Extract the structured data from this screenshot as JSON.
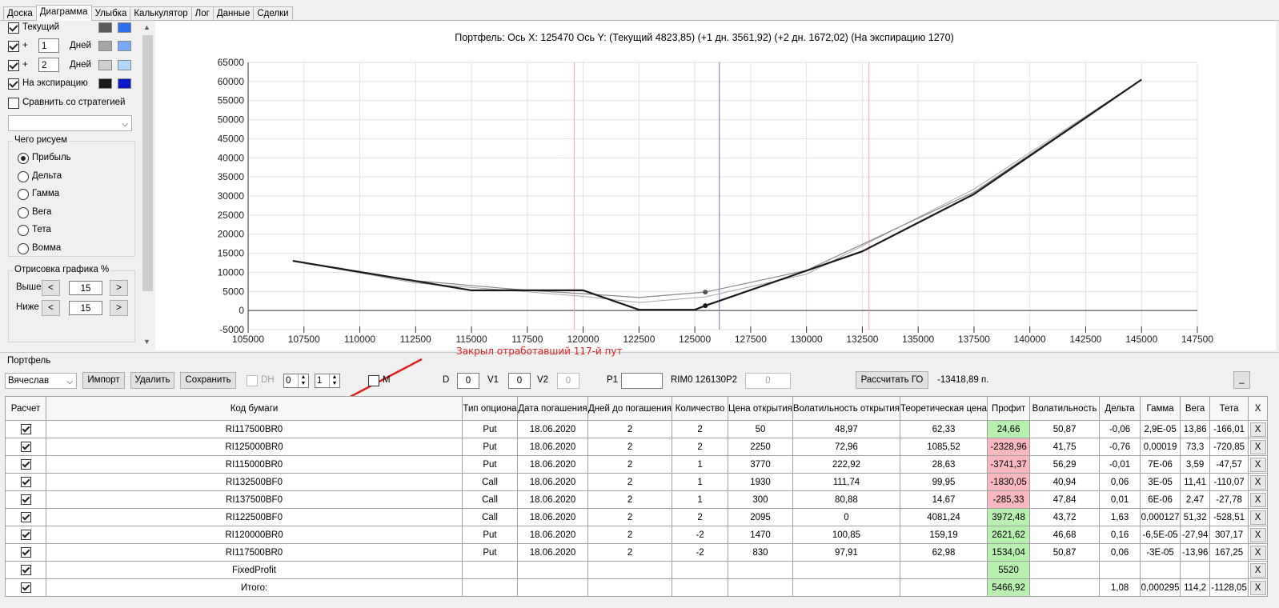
{
  "tabs": [
    {
      "label": "Доска",
      "active": false
    },
    {
      "label": "Диаграмма",
      "active": true
    },
    {
      "label": "Улыбка",
      "active": false
    },
    {
      "label": "Калькулятор",
      "active": false
    },
    {
      "label": "Лог",
      "active": false
    },
    {
      "label": "Данные",
      "active": false
    },
    {
      "label": "Сделки",
      "active": false
    }
  ],
  "left": {
    "current_label": "Текущий",
    "plus": "+",
    "days_label": "Дней",
    "days1": "1",
    "days2": "2",
    "expiration_label": "На экспирацию",
    "compare_label": "Сравнить со стратегией",
    "what_group": "Чего рисуем",
    "radios": [
      "Прибыль",
      "Дельта",
      "Гамма",
      "Вега",
      "Тета",
      "Вомма"
    ],
    "draw_group": "Отрисовка графика %",
    "above_label": "Выше",
    "below_label": "Ниже",
    "above_value": "15",
    "below_value": "15",
    "btn_left": "<",
    "btn_right": ">",
    "colors": {
      "current": [
        "#595959",
        "#2d6ff0"
      ],
      "day1": [
        "#a6a6a6",
        "#79a8f7"
      ],
      "day2": [
        "#cfcfcf",
        "#b0d8fa"
      ],
      "expiry": [
        "#1a1a1a",
        "#0b1ac9"
      ]
    }
  },
  "chart": {
    "title": "Портфель: Ось X:  125470 Ось Y:   (Текущий 4823,85)  (+1 дн. 3561,92)  (+2 дн. 1672,02)  (На экспирацию 1270)"
  },
  "chart_data": {
    "type": "line",
    "xlim": [
      105000,
      147500
    ],
    "ylim": [
      -5000,
      65000
    ],
    "x_ticks": [
      105000,
      107500,
      110000,
      112500,
      115000,
      117500,
      120000,
      122500,
      125000,
      127500,
      130000,
      132500,
      135000,
      137500,
      140000,
      142500,
      145000,
      147500
    ],
    "y_ticks": [
      -5000,
      0,
      5000,
      10000,
      15000,
      20000,
      25000,
      30000,
      35000,
      40000,
      45000,
      50000,
      55000,
      60000,
      65000
    ],
    "grid": true,
    "vertical_lines": [
      {
        "x": 119600,
        "color": "#f7a0a0"
      },
      {
        "x": 126100,
        "color": "#6f6fbf"
      },
      {
        "x": 132800,
        "color": "#f7a0a0"
      }
    ],
    "series": [
      {
        "color": "#1a1a1a",
        "width": 2.2,
        "x": [
          107000,
          115000,
          120000,
          122500,
          125000,
          125470,
          132500,
          137500,
          145000
        ],
        "y": [
          13000,
          5300,
          5300,
          200,
          200,
          1270,
          15500,
          30500,
          60500
        ]
      },
      {
        "color": "#888888",
        "width": 1.2,
        "x": [
          107000,
          112500,
          117500,
          120000,
          122500,
          125470,
          130000,
          137500,
          145000
        ],
        "y": [
          13000,
          7800,
          5300,
          4400,
          3400,
          4823.85,
          10500,
          31000,
          60500
        ]
      },
      {
        "color": "#a6a6a6",
        "width": 1.0,
        "x": [
          107000,
          112500,
          117500,
          120000,
          122500,
          125470,
          130000,
          137500,
          145000
        ],
        "y": [
          13000,
          7200,
          4900,
          3700,
          2100,
          3561.92,
          9500,
          31800,
          60500
        ]
      }
    ],
    "points": [
      {
        "x": 125470,
        "y": 4823.85,
        "color": "#555555"
      },
      {
        "x": 125470,
        "y": 1270,
        "color": "#1a1a1a"
      }
    ]
  },
  "portfolio": {
    "group": "Портфель",
    "annotation": "Закрыл отработавший 117-й пут",
    "user": "Вячеслав",
    "import": "Импорт",
    "delete": "Удалить",
    "save": "Сохранить",
    "dh": "DH",
    "spin1": "0",
    "spin2": "1",
    "m": "M",
    "d_label": "D",
    "d_value": "0",
    "v1_label": "V1",
    "v1_value": "0",
    "v2_label": "V2",
    "v2_value": "0",
    "p1_label": "P1",
    "p1_value": "",
    "rim_text": "RIM0 126130",
    "p2_label": "P2",
    "p2_value": "0",
    "calc_go": "Рассчитать ГО",
    "go_value": "-13418,89 п.",
    "min_btn": "_"
  },
  "table": {
    "headers": [
      "Расчет",
      "Код бумаги",
      "Тип опциона",
      "Дата погашения",
      "Дней до погашения",
      "Количество",
      "Цена открытия",
      "Волатильность открытия",
      "Теоретическая цена",
      "Профит",
      "Волатильность",
      "Дельта",
      "Гамма",
      "Вега",
      "Тета",
      "X"
    ],
    "rows": [
      {
        "code": "RI117500BR0",
        "type": "Put",
        "date": "18.06.2020",
        "days": "2",
        "qty": "2",
        "price": "50",
        "vol_open": "48,97",
        "theo": "62,33",
        "profit": "24,66",
        "pc": "g",
        "vol": "50,87",
        "delta": "-0,06",
        "gamma": "2,9E-05",
        "vega": "13,86",
        "theta": "-166,01"
      },
      {
        "code": "RI125000BR0",
        "type": "Put",
        "date": "18.06.2020",
        "days": "2",
        "qty": "2",
        "price": "2250",
        "vol_open": "72,96",
        "theo": "1085,52",
        "profit": "-2328,96",
        "pc": "r",
        "vol": "41,75",
        "delta": "-0,76",
        "gamma": "0,00019",
        "vega": "73,3",
        "theta": "-720,85"
      },
      {
        "code": "RI115000BR0",
        "type": "Put",
        "date": "18.06.2020",
        "days": "2",
        "qty": "1",
        "price": "3770",
        "vol_open": "222,92",
        "theo": "28,63",
        "profit": "-3741,37",
        "pc": "r",
        "vol": "56,29",
        "delta": "-0,01",
        "gamma": "7E-06",
        "vega": "3,59",
        "theta": "-47,57"
      },
      {
        "code": "RI132500BF0",
        "type": "Call",
        "date": "18.06.2020",
        "days": "2",
        "qty": "1",
        "price": "1930",
        "vol_open": "111,74",
        "theo": "99,95",
        "profit": "-1830,05",
        "pc": "r",
        "vol": "40,94",
        "delta": "0,06",
        "gamma": "3E-05",
        "vega": "11,41",
        "theta": "-110,07"
      },
      {
        "code": "RI137500BF0",
        "type": "Call",
        "date": "18.06.2020",
        "days": "2",
        "qty": "1",
        "price": "300",
        "vol_open": "80,88",
        "theo": "14,67",
        "profit": "-285,33",
        "pc": "r",
        "vol": "47,84",
        "delta": "0,01",
        "gamma": "6E-06",
        "vega": "2,47",
        "theta": "-27,78"
      },
      {
        "code": "RI122500BF0",
        "type": "Call",
        "date": "18.06.2020",
        "days": "2",
        "qty": "2",
        "price": "2095",
        "vol_open": "0",
        "theo": "4081,24",
        "profit": "3972,48",
        "pc": "g",
        "vol": "43,72",
        "delta": "1,63",
        "gamma": "0,000127",
        "vega": "51,32",
        "theta": "-528,51"
      },
      {
        "code": "RI120000BR0",
        "type": "Put",
        "date": "18.06.2020",
        "days": "2",
        "qty": "-2",
        "price": "1470",
        "vol_open": "100,85",
        "theo": "159,19",
        "profit": "2621,62",
        "pc": "g",
        "vol": "46,68",
        "delta": "0,16",
        "gamma": "-6,5E-05",
        "vega": "-27,94",
        "theta": "307,17"
      },
      {
        "code": "RI117500BR0",
        "type": "Put",
        "date": "18.06.2020",
        "days": "2",
        "qty": "-2",
        "price": "830",
        "vol_open": "97,91",
        "theo": "62,98",
        "profit": "1534,04",
        "pc": "g",
        "vol": "50,87",
        "delta": "0,06",
        "gamma": "-3E-05",
        "vega": "-13,96",
        "theta": "167,25"
      }
    ],
    "fixed_label": "FixedProfit",
    "fixed_value": "5520",
    "total_label": "Итого:",
    "total_profit": "5466,92",
    "total_delta": "1,08",
    "total_gamma": "0,000295",
    "total_vega": "114,2",
    "total_theta": "-1128,05",
    "x_label": "X"
  }
}
